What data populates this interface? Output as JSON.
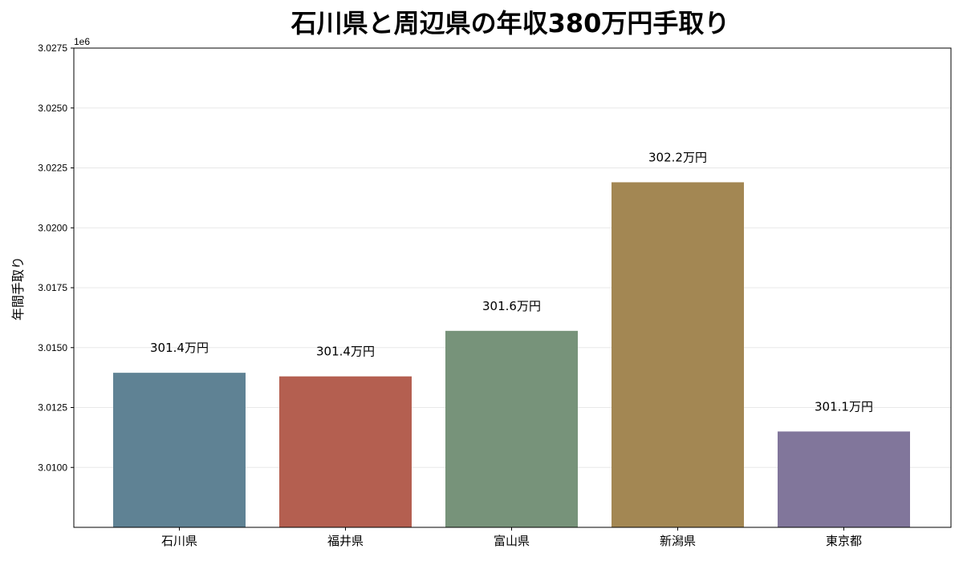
{
  "chart_data": {
    "type": "bar",
    "title": "石川県と周辺県の年収380万円手取り",
    "xlabel": "",
    "ylabel": "年間手取り",
    "offset_text": "1e6",
    "categories": [
      "石川県",
      "福井県",
      "富山県",
      "新潟県",
      "東京都"
    ],
    "values": [
      3013950,
      3013800,
      3015700,
      3021900,
      3011500
    ],
    "data_labels": [
      "301.4万円",
      "301.4万円",
      "301.6万円",
      "302.2万円",
      "301.1万円"
    ],
    "colors": [
      "#5f8294",
      "#b45f50",
      "#77937a",
      "#a38753",
      "#81769b"
    ],
    "ylim": [
      3007500,
      3027500
    ],
    "yticks": [
      3.01,
      3.0125,
      3.015,
      3.0175,
      3.02,
      3.0225,
      3.025,
      3.0275
    ],
    "ytick_labels": [
      "3.0100",
      "3.0125",
      "3.0150",
      "3.0175",
      "3.0200",
      "3.0225",
      "3.0250",
      "3.0275"
    ],
    "grid": true
  }
}
